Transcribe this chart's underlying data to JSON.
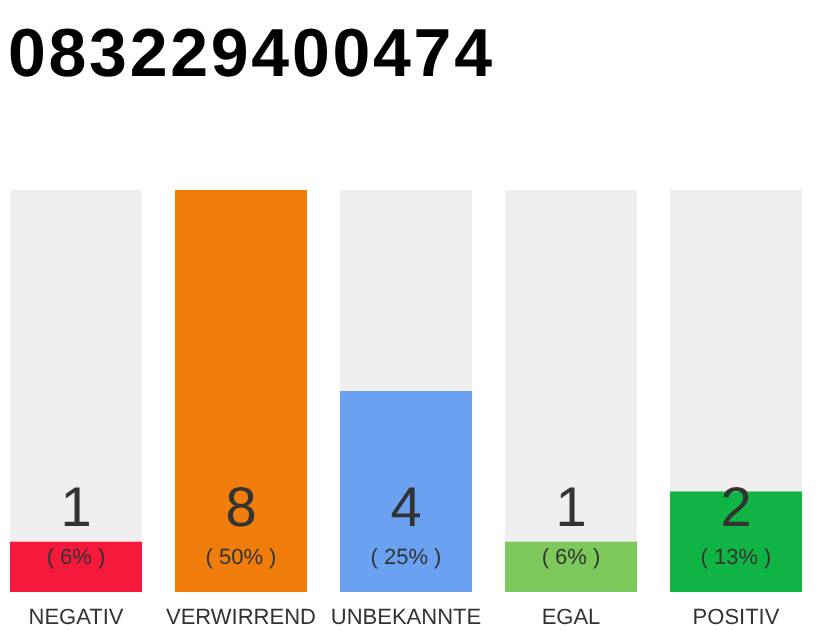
{
  "chart_data": {
    "type": "bar",
    "title": "083229400474",
    "categories": [
      "NEGATIV",
      "VERWIRREND",
      "UNBEKANNTE",
      "EGAL",
      "POSITIV"
    ],
    "values": [
      1,
      8,
      4,
      1,
      2
    ],
    "colors": [
      "#f5193c",
      "#f07d0a",
      "#6aa1f0",
      "#7dc85a",
      "#10b444"
    ],
    "ylim": [
      0,
      8
    ],
    "data_labels": true,
    "tick_labels": "x",
    "annotations": [
      "( 6% )",
      "( 50% )",
      "( 25% )",
      "( 6% )",
      "( 13% )"
    ]
  }
}
